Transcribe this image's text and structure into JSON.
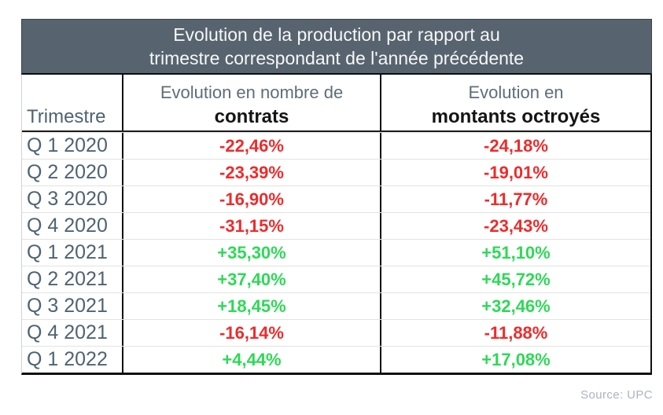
{
  "banner": {
    "title_line1": "Evolution de la production par rapport au",
    "title_line2": "trimestre correspondant de l'année précédente"
  },
  "header": {
    "trimestre": "Trimestre",
    "contracts_line1": "Evolution en nombre de",
    "contracts_line2": "contrats",
    "amounts_line1": "Evolution en",
    "amounts_line2": "montants octroyés"
  },
  "rows": [
    {
      "quarter": "Q 1 2020",
      "contracts": "-22,46%",
      "amounts": "-24,18%",
      "trend": "down"
    },
    {
      "quarter": "Q 2 2020",
      "contracts": "-23,39%",
      "amounts": "-19,01%",
      "trend": "down"
    },
    {
      "quarter": "Q 3 2020",
      "contracts": "-16,90%",
      "amounts": "-11,77%",
      "trend": "down"
    },
    {
      "quarter": "Q 4 2020",
      "contracts": "-31,15%",
      "amounts": "-23,43%",
      "trend": "down"
    },
    {
      "quarter": "Q 1 2021",
      "contracts": "+35,30%",
      "amounts": "+51,10%",
      "trend": "up"
    },
    {
      "quarter": "Q 2 2021",
      "contracts": "+37,40%",
      "amounts": "+45,72%",
      "trend": "up"
    },
    {
      "quarter": "Q 3 2021",
      "contracts": "+18,45%",
      "amounts": "+32,46%",
      "trend": "up"
    },
    {
      "quarter": "Q 4 2021",
      "contracts": "-16,14%",
      "amounts": "-11,88%",
      "trend": "down"
    },
    {
      "quarter": "Q 1 2022",
      "contracts": "+4,44%",
      "amounts": "+17,08%",
      "trend": "up"
    }
  ],
  "footer": {
    "source": "Source: UPC"
  },
  "colors": {
    "positive": "#2ed957",
    "negative": "#ee2b2b",
    "banner-bg": "#57646f",
    "banner-text": "#f7f7f7",
    "label-text": "#4e6373",
    "header-muted": "#5e6d7a",
    "source-text": "#a9b4c1"
  },
  "chart_data": {
    "type": "table",
    "title": "Evolution de la production par rapport au trimestre correspondant de l'année précédente",
    "categories": [
      "Q 1 2020",
      "Q 2 2020",
      "Q 3 2020",
      "Q 4 2020",
      "Q 1 2021",
      "Q 2 2021",
      "Q 3 2021",
      "Q 4 2021",
      "Q 1 2022"
    ],
    "series": [
      {
        "name": "Evolution en nombre de contrats",
        "values": [
          -22.46,
          -23.39,
          -16.9,
          -31.15,
          35.3,
          37.4,
          18.45,
          -16.14,
          4.44
        ]
      },
      {
        "name": "Evolution en montants octroyés",
        "values": [
          -24.18,
          -19.01,
          -11.77,
          -23.43,
          51.1,
          45.72,
          32.46,
          -11.88,
          17.08
        ]
      }
    ],
    "unit": "%",
    "value_color_rule": "negative values red, positive values green",
    "source": "Source: UPC"
  }
}
